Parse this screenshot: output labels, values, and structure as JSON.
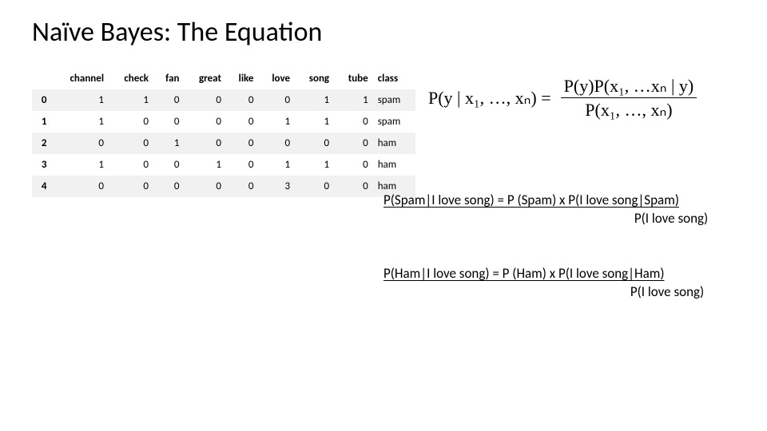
{
  "title": "Naïve Bayes: The Equation",
  "table": {
    "columns": [
      "",
      "channel",
      "check",
      "fan",
      "great",
      "like",
      "love",
      "song",
      "tube",
      "class"
    ],
    "rows": [
      [
        "0",
        "1",
        "1",
        "0",
        "0",
        "0",
        "0",
        "1",
        "1",
        "spam"
      ],
      [
        "1",
        "1",
        "0",
        "0",
        "0",
        "0",
        "1",
        "1",
        "0",
        "spam"
      ],
      [
        "2",
        "0",
        "0",
        "1",
        "0",
        "0",
        "0",
        "0",
        "0",
        "ham"
      ],
      [
        "3",
        "1",
        "0",
        "0",
        "1",
        "0",
        "1",
        "1",
        "0",
        "ham"
      ],
      [
        "4",
        "0",
        "0",
        "0",
        "0",
        "0",
        "3",
        "0",
        "0",
        "ham"
      ]
    ],
    "odd_bg": "#f1f1f1",
    "even_bg": "#ffffff"
  },
  "main_formula": {
    "lhs": "P(y | x₁, …, xₙ) =",
    "num": "P(y)P(x₁, …xₙ | y)",
    "den": "P(x₁, …, xₙ)"
  },
  "spam_eq": {
    "line1": "P(Spam|I love song) = P (Spam) x P(I love song|Spam)",
    "line2": "P(I love song)"
  },
  "ham_eq": {
    "line1": "P(Ham|I love song) = P (Ham) x P(I love song|Ham)",
    "line2": "P(I love song)"
  }
}
